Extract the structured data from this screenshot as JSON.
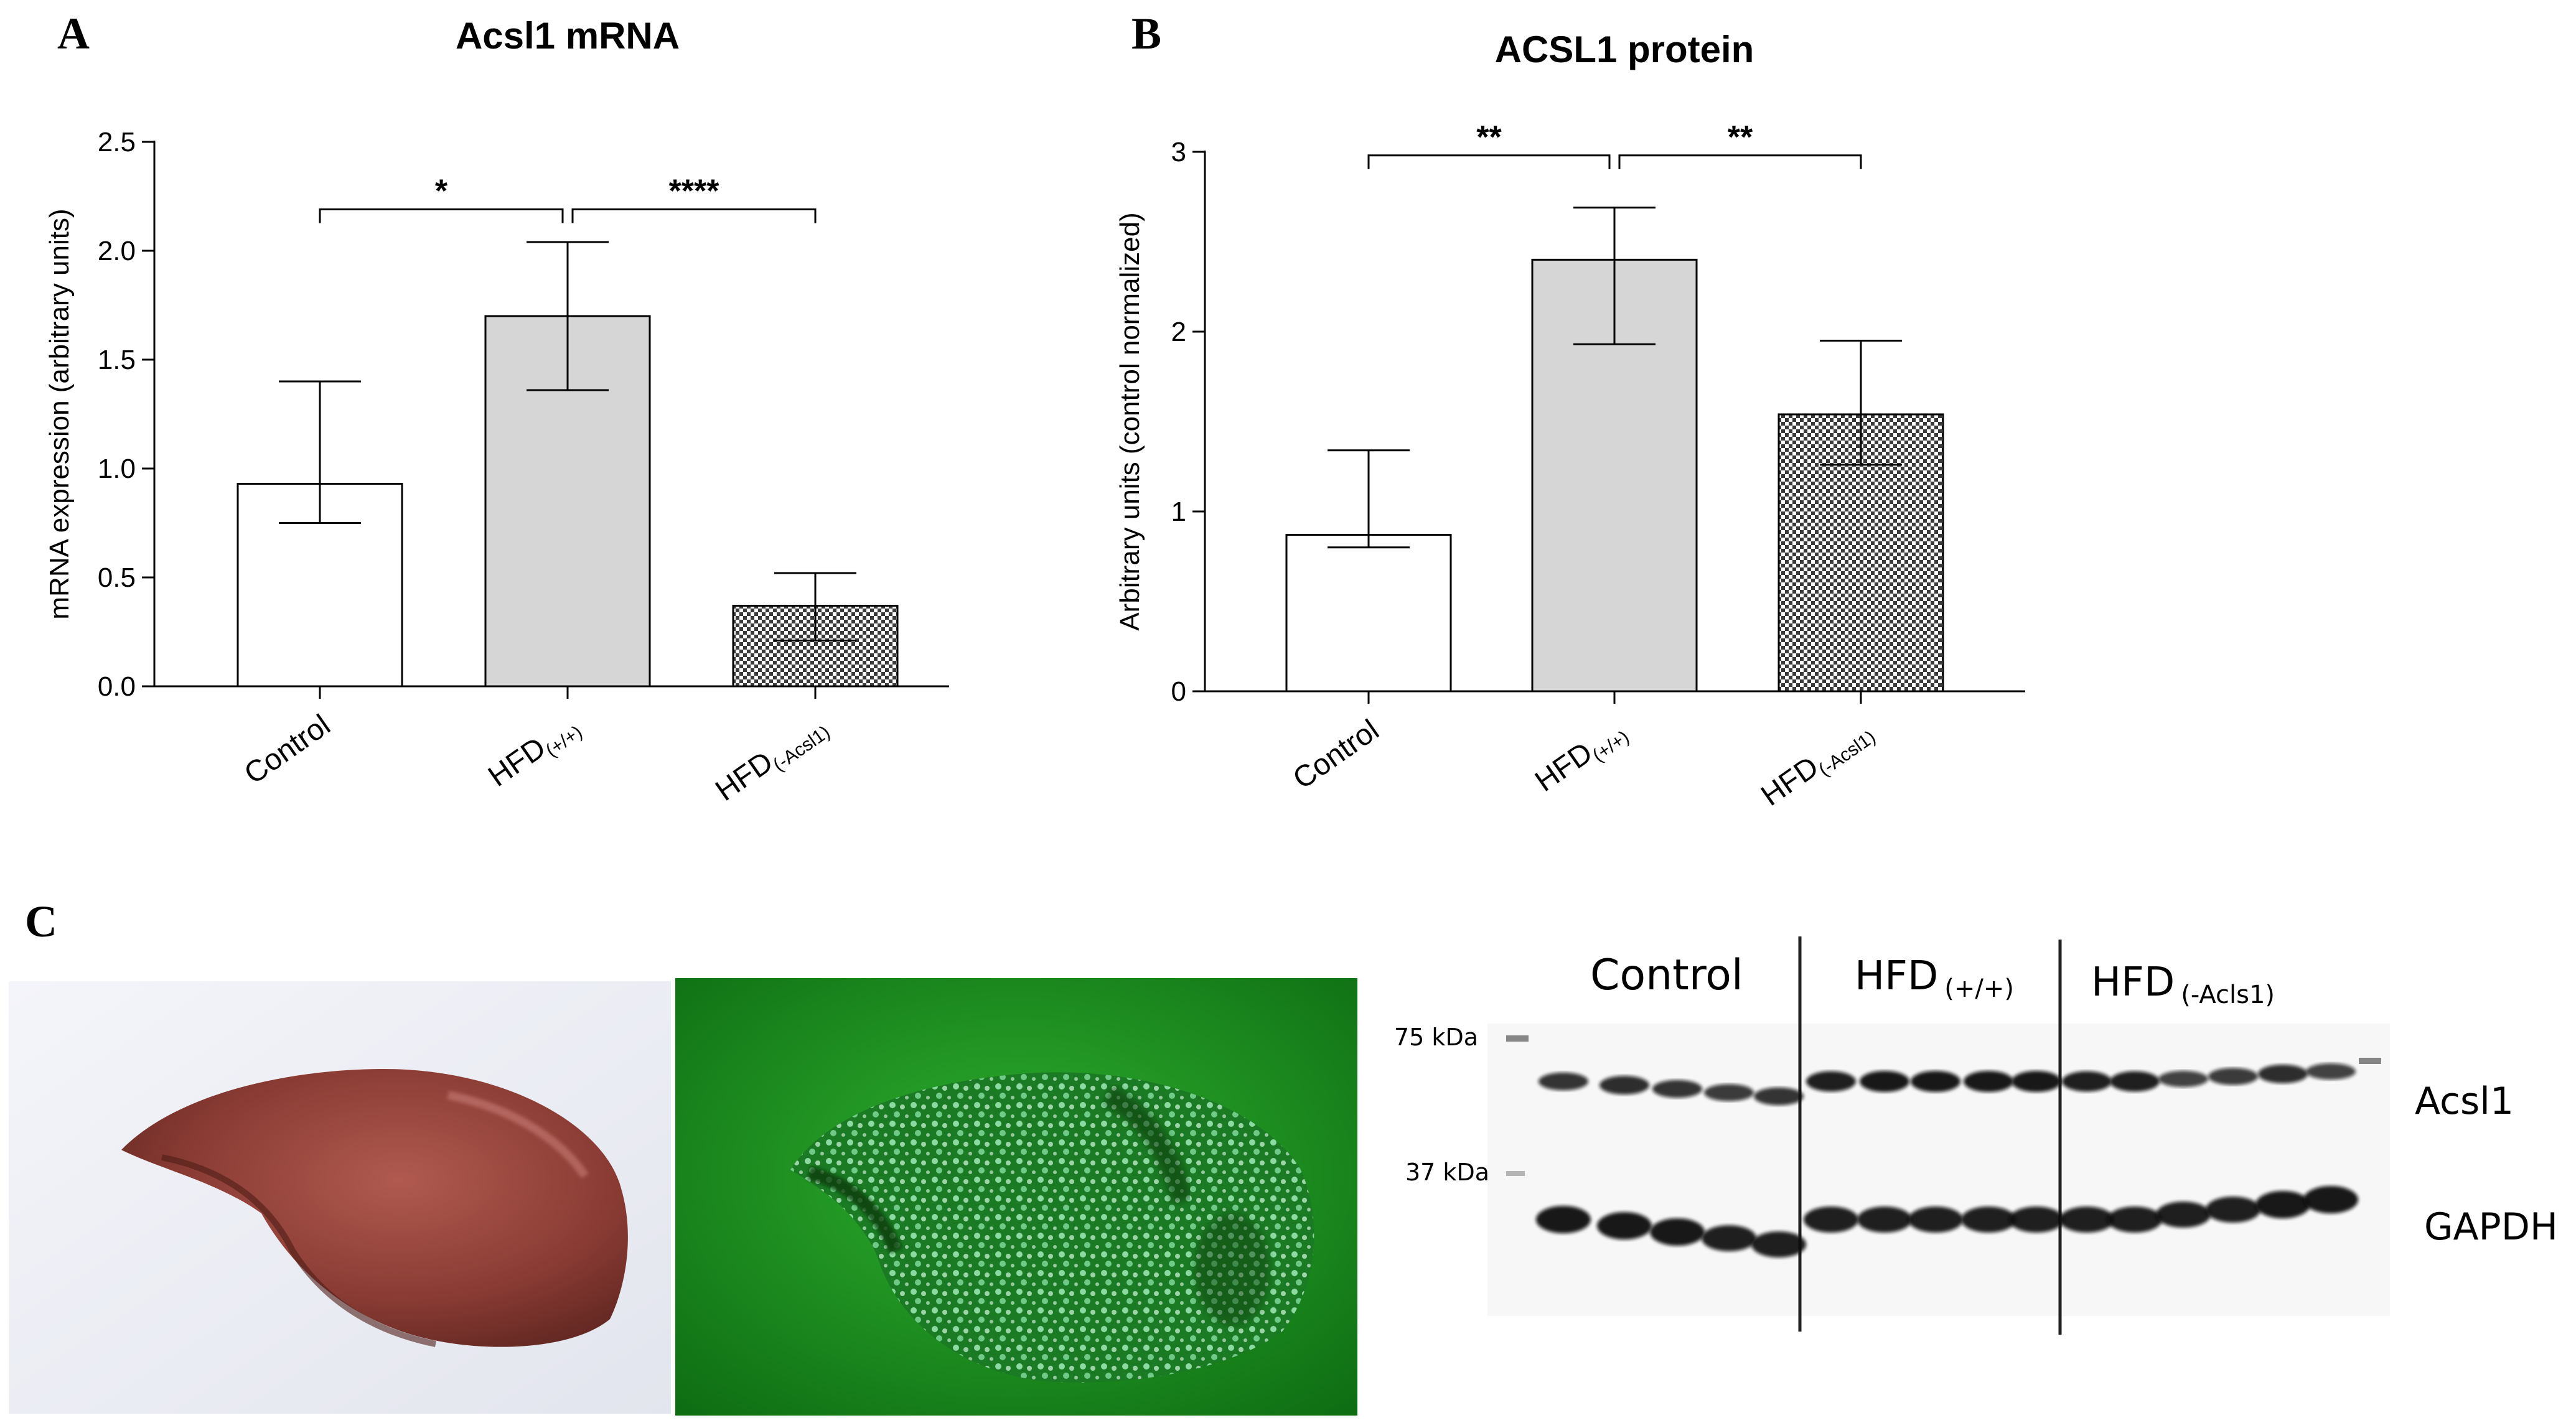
{
  "panels": {
    "A": "A",
    "B": "B",
    "C": "C"
  },
  "chart_data": [
    {
      "type": "bar",
      "title": "Acsl1 mRNA",
      "ylabel": "mRNA expression (arbitrary units)",
      "xlabel": "",
      "ylim": [
        0,
        2.5
      ],
      "yticks": [
        "0.0",
        "0.5",
        "1.0",
        "1.5",
        "2.0",
        "2.5"
      ],
      "categories": [
        {
          "main": "Control",
          "sub": ""
        },
        {
          "main": "HFD",
          "sub": "(+/+)"
        },
        {
          "main": "HFD",
          "sub": "(-Acsl1)"
        }
      ],
      "values": [
        0.93,
        1.7,
        0.37
      ],
      "error_upper": [
        1.4,
        2.04,
        0.52
      ],
      "error_lower": [
        0.75,
        1.36,
        0.21
      ],
      "fills": [
        "white",
        "gray",
        "checker"
      ],
      "significance": [
        {
          "from": 0,
          "to": 1,
          "label": "*"
        },
        {
          "from": 1,
          "to": 2,
          "label": "****"
        }
      ],
      "bracket_y": 2.19
    },
    {
      "type": "bar",
      "title": "ACSL1 protein",
      "ylabel": "Arbitrary units (control normalized)",
      "xlabel": "",
      "ylim": [
        0,
        3
      ],
      "yticks": [
        "0",
        "1",
        "2",
        "3"
      ],
      "categories": [
        {
          "main": "Control",
          "sub": ""
        },
        {
          "main": "HFD",
          "sub": "(+/+)"
        },
        {
          "main": "HFD",
          "sub": "(-Acsl1)"
        }
      ],
      "values": [
        0.87,
        2.4,
        1.54
      ],
      "error_upper": [
        1.34,
        2.69,
        1.95
      ],
      "error_lower": [
        0.8,
        1.93,
        1.26
      ],
      "fills": [
        "white",
        "gray",
        "checker"
      ],
      "significance": [
        {
          "from": 0,
          "to": 1,
          "label": "**"
        },
        {
          "from": 1,
          "to": 2,
          "label": "**"
        }
      ],
      "bracket_y": 2.98
    }
  ],
  "blot": {
    "groups": [
      {
        "main": "Control",
        "sub": ""
      },
      {
        "main": "HFD",
        "sub": "(+/+)"
      },
      {
        "main": "HFD",
        "sub": "(-Acls1)"
      }
    ],
    "markers": [
      "75 kDa",
      "37 kDa"
    ],
    "bands": [
      "Acsl1",
      "GAPDH"
    ],
    "acsl1_intensity": [
      0.8,
      0.85,
      0.8,
      0.75,
      0.8,
      0.95,
      1.0,
      1.0,
      1.0,
      1.0,
      0.95,
      0.95,
      0.7,
      0.75,
      0.85,
      0.7
    ],
    "gapdh_intensity": [
      1.0,
      1.0,
      1.0,
      0.95,
      0.95,
      0.95,
      0.95,
      0.95,
      0.95,
      0.95,
      0.95,
      0.95,
      0.95,
      0.95,
      1.0,
      1.0
    ]
  },
  "colors": {
    "bar_gray": "#d6d6d6",
    "tissue_green": "#1f8a1f",
    "liver": "#8a3c34"
  }
}
